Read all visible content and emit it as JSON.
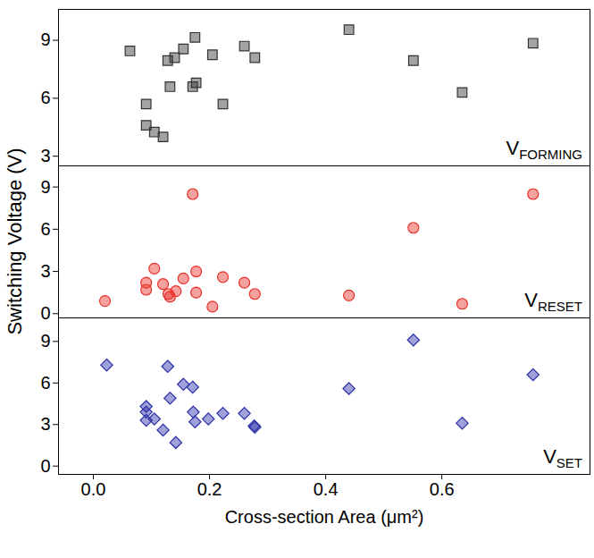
{
  "chart_data": {
    "type": "scatter",
    "x_label": "Cross-section Area (μm²)",
    "y_label": "Switching Voltage (V)",
    "xlim": [
      -0.06,
      0.855
    ],
    "xticks": [
      {
        "value": 0,
        "label": "0.0"
      },
      0.2,
      0.4,
      0.6
    ],
    "series": [
      {
        "name": "VFORMING",
        "color": "#333333",
        "marker": "square",
        "ylim": [
          2.5,
          10.6
        ],
        "yticks": [
          3,
          6,
          9
        ],
        "x": [
          0.063,
          0.091,
          0.091,
          0.105,
          0.12,
          0.128,
          0.132,
          0.14,
          0.155,
          0.175,
          0.171,
          0.177,
          0.205,
          0.223,
          0.26,
          0.278,
          0.44,
          0.551,
          0.635,
          0.757
        ],
        "values": [
          8.45,
          5.7,
          4.6,
          4.25,
          4.0,
          7.95,
          6.6,
          8.1,
          8.55,
          9.15,
          6.6,
          6.8,
          8.25,
          5.7,
          8.7,
          8.1,
          9.55,
          7.95,
          6.3,
          8.85
        ]
      },
      {
        "name": "VRESET",
        "color": "#e8312a",
        "marker": "circle",
        "ylim": [
          -0.3,
          10.5
        ],
        "yticks": [
          0,
          3,
          6,
          9
        ],
        "x": [
          0.02,
          0.091,
          0.091,
          0.105,
          0.12,
          0.129,
          0.132,
          0.142,
          0.155,
          0.171,
          0.177,
          0.177,
          0.205,
          0.223,
          0.26,
          0.278,
          0.44,
          0.551,
          0.635,
          0.757
        ],
        "values": [
          0.9,
          2.2,
          1.7,
          3.2,
          2.1,
          1.4,
          1.2,
          1.6,
          2.5,
          8.5,
          3.0,
          1.5,
          0.5,
          2.6,
          2.2,
          1.4,
          1.3,
          6.1,
          0.7,
          8.5
        ]
      },
      {
        "name": "VSET",
        "color": "#2b2fa8",
        "marker": "diamond",
        "ylim": [
          -0.6,
          10.7
        ],
        "yticks": [
          0,
          3,
          6,
          9
        ],
        "x": [
          0.023,
          0.091,
          0.091,
          0.091,
          0.105,
          0.12,
          0.128,
          0.132,
          0.142,
          0.155,
          0.171,
          0.172,
          0.175,
          0.198,
          0.223,
          0.26,
          0.278,
          0.277,
          0.44,
          0.551,
          0.635,
          0.757
        ],
        "values": [
          7.3,
          4.3,
          3.9,
          3.3,
          3.4,
          2.6,
          7.2,
          4.9,
          1.7,
          5.9,
          5.7,
          3.9,
          3.2,
          3.4,
          3.8,
          3.8,
          2.8,
          2.9,
          5.6,
          9.1,
          3.1,
          6.6
        ]
      }
    ]
  }
}
